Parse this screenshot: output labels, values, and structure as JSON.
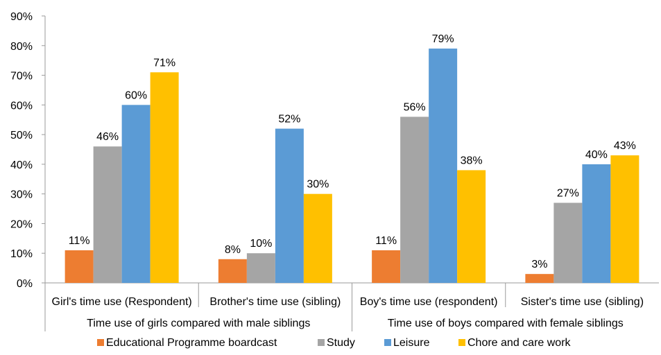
{
  "chart_data": {
    "type": "bar",
    "categories": [
      "Girl's time use (Respondent)",
      "Brother's time use (sibling)",
      "Boy's time use (respondent)",
      "Sister's time use (sibling)"
    ],
    "groups": [
      "Time use of girls compared with male siblings",
      "Time use of boys compared with female siblings"
    ],
    "series": [
      {
        "name": "Educational Programme boardcast",
        "color": "#ed7d31",
        "values": [
          11,
          8,
          11,
          3
        ],
        "labels": [
          "11%",
          "8%",
          "11%",
          "3%"
        ]
      },
      {
        "name": "Study",
        "color": "#a5a5a5",
        "values": [
          46,
          10,
          56,
          27
        ],
        "labels": [
          "46%",
          "10%",
          "56%",
          "27%"
        ]
      },
      {
        "name": "Leisure",
        "color": "#5b9bd5",
        "values": [
          60,
          52,
          79,
          40
        ],
        "labels": [
          "60%",
          "52%",
          "79%",
          "40%"
        ]
      },
      {
        "name": "Chore and care work",
        "color": "#ffc000",
        "values": [
          71,
          30,
          38,
          43
        ],
        "labels": [
          "71%",
          "30%",
          "38%",
          "43%"
        ]
      }
    ],
    "ylim": [
      0,
      90
    ],
    "yticks": [
      "0%",
      "10%",
      "20%",
      "30%",
      "40%",
      "50%",
      "60%",
      "70%",
      "80%",
      "90%"
    ],
    "grid": false,
    "legend_position": "bottom"
  }
}
